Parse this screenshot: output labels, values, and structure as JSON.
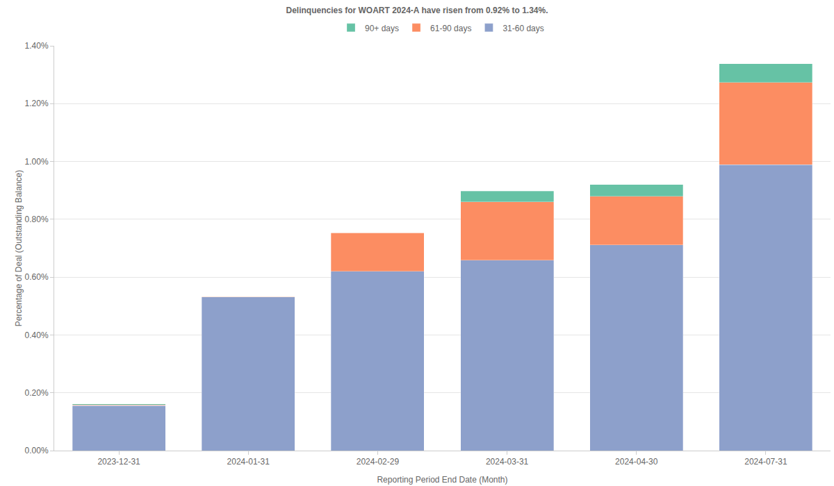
{
  "chart_data": {
    "type": "bar",
    "title": "Delinquencies for WOART 2024-A have risen from 0.92% to 1.34%.",
    "x_label": "Reporting Period End Date (Month)",
    "y_label": "Percentage of Deal (Outstanding Balance)",
    "categories": [
      "2023-12-31",
      "2024-01-31",
      "2024-02-29",
      "2024-03-31",
      "2024-04-30",
      "2024-07-31"
    ],
    "series": [
      {
        "name": "31-60 days",
        "color": "#8da0cb",
        "values": [
          0.156,
          0.531,
          0.62,
          0.658,
          0.711,
          0.989
        ]
      },
      {
        "name": "61-90 days",
        "color": "#fc8d62",
        "values": [
          0.002,
          0.002,
          0.134,
          0.202,
          0.168,
          0.284
        ]
      },
      {
        "name": "90+ days",
        "color": "#66c2a5",
        "values": [
          0.003,
          0,
          0,
          0.038,
          0.041,
          0.065
        ]
      }
    ],
    "stacked": true,
    "ylim": [
      0,
      1.4
    ],
    "yticks": [
      {
        "value": 0,
        "label": "0.00%"
      },
      {
        "value": 0.2,
        "label": "0.20%"
      },
      {
        "value": 0.4,
        "label": "0.40%"
      },
      {
        "value": 0.6,
        "label": "0.60%"
      },
      {
        "value": 0.8,
        "label": "0.80%"
      },
      {
        "value": 1.0,
        "label": "1.00%"
      },
      {
        "value": 1.2,
        "label": "1.20%"
      },
      {
        "value": 1.4,
        "label": "1.40%"
      }
    ],
    "grid": true,
    "legend": "top"
  }
}
